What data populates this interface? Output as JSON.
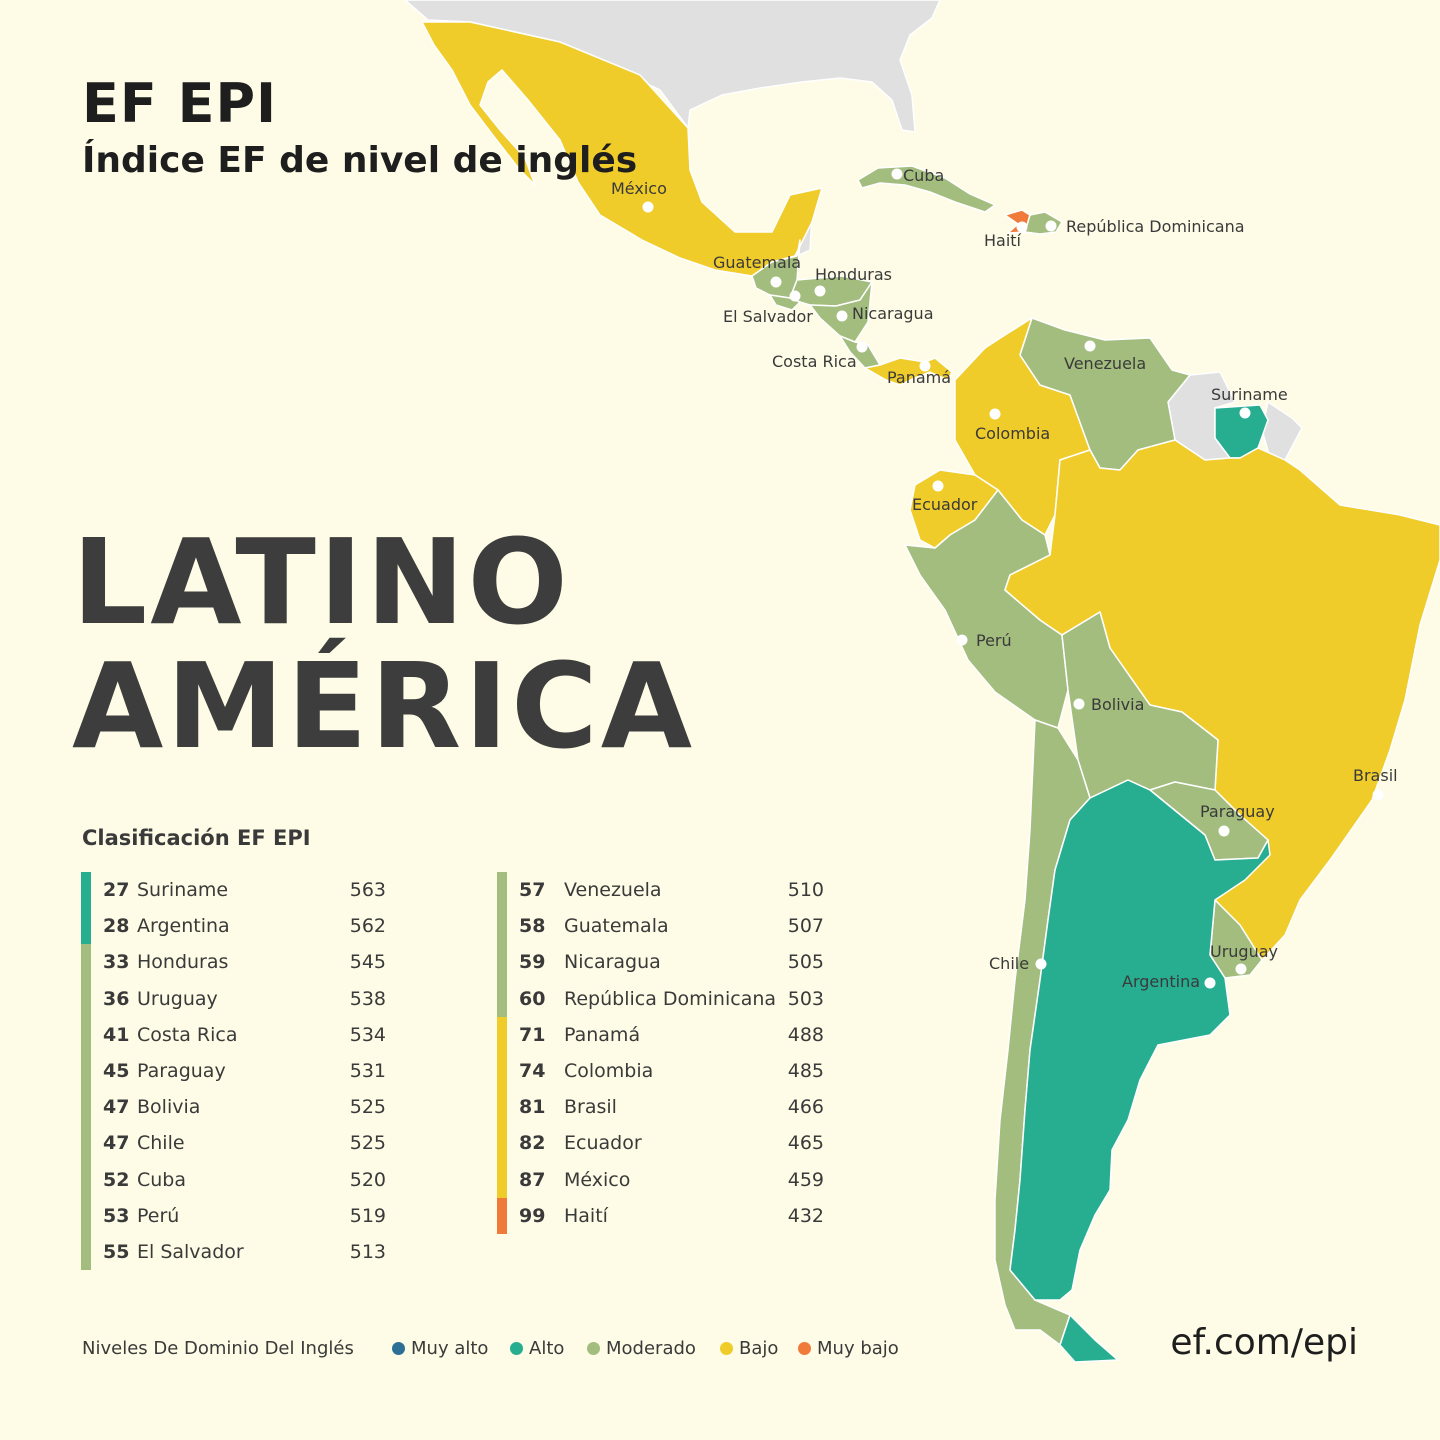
{
  "header": {
    "brand": "EF EPI",
    "subtitle": "Índice EF de nivel de inglés"
  },
  "region": {
    "line1": "LATINO",
    "line2": "AMÉRICA"
  },
  "ranking": {
    "heading": "Clasificación EF EPI",
    "column1": [
      {
        "rank": "27",
        "country": "Suriname",
        "score": "563",
        "level": "alto"
      },
      {
        "rank": "28",
        "country": "Argentina",
        "score": "562",
        "level": "alto"
      },
      {
        "rank": "33",
        "country": "Honduras",
        "score": "545",
        "level": "moderado"
      },
      {
        "rank": "36",
        "country": "Uruguay",
        "score": "538",
        "level": "moderado"
      },
      {
        "rank": "41",
        "country": "Costa Rica",
        "score": "534",
        "level": "moderado"
      },
      {
        "rank": "45",
        "country": "Paraguay",
        "score": "531",
        "level": "moderado"
      },
      {
        "rank": "47",
        "country": "Bolivia",
        "score": "525",
        "level": "moderado"
      },
      {
        "rank": "47",
        "country": "Chile",
        "score": "525",
        "level": "moderado"
      },
      {
        "rank": "52",
        "country": "Cuba",
        "score": "520",
        "level": "moderado"
      },
      {
        "rank": "53",
        "country": "Perú",
        "score": "519",
        "level": "moderado"
      },
      {
        "rank": "55",
        "country": "El Salvador",
        "score": "513",
        "level": "moderado"
      }
    ],
    "column2": [
      {
        "rank": "57",
        "country": "Venezuela",
        "score": "510",
        "level": "moderado"
      },
      {
        "rank": "58",
        "country": "Guatemala",
        "score": "507",
        "level": "moderado"
      },
      {
        "rank": "59",
        "country": "Nicaragua",
        "score": "505",
        "level": "moderado"
      },
      {
        "rank": "60",
        "country": "República Dominicana",
        "score": "503",
        "level": "moderado"
      },
      {
        "rank": "71",
        "country": "Panamá",
        "score": "488",
        "level": "bajo"
      },
      {
        "rank": "74",
        "country": "Colombia",
        "score": "485",
        "level": "bajo"
      },
      {
        "rank": "81",
        "country": "Brasil",
        "score": "466",
        "level": "bajo"
      },
      {
        "rank": "82",
        "country": "Ecuador",
        "score": "465",
        "level": "bajo"
      },
      {
        "rank": "87",
        "country": "México",
        "score": "459",
        "level": "bajo"
      },
      {
        "rank": "99",
        "country": "Haití",
        "score": "432",
        "level": "muy_bajo"
      }
    ]
  },
  "legend": {
    "title": "Niveles De Dominio Del Inglés",
    "items": [
      {
        "key": "muy_alto",
        "label": "Muy alto",
        "color": "#2e6f95"
      },
      {
        "key": "alto",
        "label": "Alto",
        "color": "#27ae91"
      },
      {
        "key": "moderado",
        "label": "Moderado",
        "color": "#a3bd7f"
      },
      {
        "key": "bajo",
        "label": "Bajo",
        "color": "#f0cc2b"
      },
      {
        "key": "muy_bajo",
        "label": "Muy bajo",
        "color": "#f07a3a"
      }
    ]
  },
  "map": {
    "colors": {
      "background": "#fefce6",
      "non_ranked": "#e0e0e0",
      "border": "#ffffff"
    },
    "labels": {
      "mexico": "México",
      "cuba": "Cuba",
      "haiti": "Haití",
      "dominicana": "República Dominicana",
      "guatemala": "Guatemala",
      "honduras": "Honduras",
      "el_salvador": "El Salvador",
      "nicaragua": "Nicaragua",
      "costa_rica": "Costa Rica",
      "panama": "Panamá",
      "venezuela": "Venezuela",
      "suriname": "Suriname",
      "colombia": "Colombia",
      "ecuador": "Ecuador",
      "peru": "Perú",
      "bolivia": "Bolivia",
      "brasil": "Brasil",
      "paraguay": "Paraguay",
      "chile": "Chile",
      "uruguay": "Uruguay",
      "argentina": "Argentina"
    }
  },
  "footer": {
    "url": "ef.com/epi"
  }
}
